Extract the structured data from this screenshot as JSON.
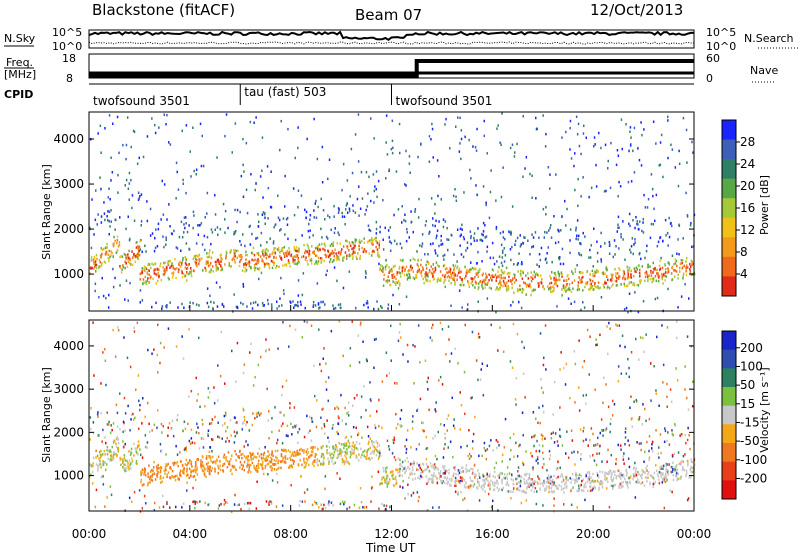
{
  "header": {
    "station": "Blackstone (fitACF)",
    "beam": "Beam 07",
    "date": "12/Oct/2013"
  },
  "left_labels": {
    "nsky": "N.Sky",
    "freq": "Freq.",
    "freq_unit": "[MHz]",
    "cpid": "CPID"
  },
  "right_labels": {
    "nsearch": "N.Search",
    "nave": "Nave"
  },
  "colors": {
    "noise_line": "#000000",
    "background_scatter": "#6a8f3a"
  },
  "chart_data": [
    {
      "type": "line",
      "name": "noise",
      "y_left_ticks": [
        "10^5",
        "10^0"
      ],
      "y_right_ticks": [
        "10^5",
        "10^0"
      ],
      "series": [
        {
          "name": "N.Sky"
        },
        {
          "name": "N.Search"
        }
      ]
    },
    {
      "type": "line",
      "name": "frequency_nave",
      "y_left_ticks": [
        "18",
        "8"
      ],
      "y_right_ticks": [
        "60",
        "0"
      ],
      "x": [
        0,
        13,
        13,
        24
      ],
      "series": [
        {
          "name": "Freq.",
          "values": [
            10.5,
            10.5,
            10.5,
            10.5
          ]
        },
        {
          "name": "Nave",
          "values": [
            0,
            0,
            45,
            45
          ]
        }
      ]
    },
    {
      "type": "table",
      "name": "cpid",
      "segments": [
        {
          "start": 0,
          "end": 6,
          "label": "twofsound 3501"
        },
        {
          "start": 6,
          "end": 12,
          "label": "tau (fast) 503"
        },
        {
          "start": 12,
          "end": 24,
          "label": "twofsound 3501"
        }
      ]
    },
    {
      "type": "heatmap",
      "name": "power",
      "ylabel": "Slant Range [km]",
      "y_ticks": [
        1000,
        2000,
        3000,
        4000
      ],
      "ylim": [
        180,
        4600
      ],
      "colorbar_label": "Power [dB]",
      "colorbar_ticks": [
        4,
        8,
        12,
        16,
        20,
        24,
        28
      ],
      "colorbar_colors": [
        "#1a24ff",
        "#3d5fb8",
        "#2f7f66",
        "#58a848",
        "#a6c93a",
        "#f2c118",
        "#f39a1a",
        "#f16a1c",
        "#e22a1a"
      ],
      "clim": [
        0,
        30
      ]
    },
    {
      "type": "heatmap",
      "name": "velocity",
      "ylabel": "Slant Range [km]",
      "y_ticks": [
        1000,
        2000,
        3000,
        4000
      ],
      "ylim": [
        180,
        4600
      ],
      "colorbar_label": "Velocity [m s⁻¹]",
      "colorbar_ticks": [
        200,
        100,
        50,
        15,
        -15,
        -50,
        -100,
        -200
      ],
      "colorbar_colors": [
        "#1a24c8",
        "#2f4fb0",
        "#2f8060",
        "#7cc040",
        "#c8c8c8",
        "#f4a818",
        "#f07820",
        "#e8401a",
        "#e01010"
      ],
      "clim": [
        -250,
        250
      ]
    }
  ],
  "x_axis": {
    "label": "Time UT",
    "ticks": [
      "00:00",
      "04:00",
      "08:00",
      "12:00",
      "16:00",
      "20:00",
      "00:00"
    ],
    "tick_hours": [
      0,
      4,
      8,
      12,
      16,
      20,
      24
    ]
  }
}
